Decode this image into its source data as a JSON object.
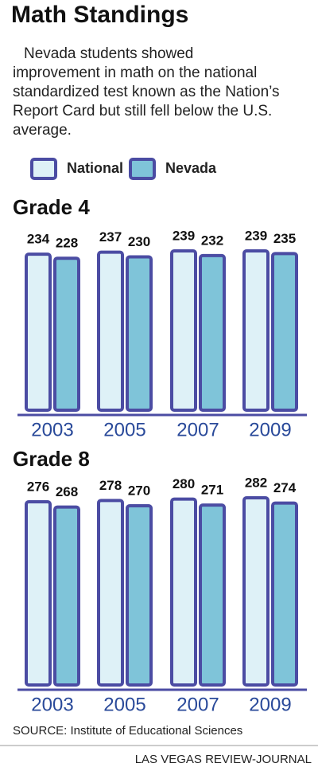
{
  "title": "Math Standings",
  "subtitle": "Nevada students showed improvement in math on the national standardized test known as the Nation’s Report Card but still fell below the U.S. average.",
  "chart_data": [
    {
      "type": "bar",
      "title": "Grade 4",
      "categories": [
        "2003",
        "2005",
        "2007",
        "2009"
      ],
      "edgecolor": "#4b4ca3",
      "series": [
        {
          "name": "National",
          "color": "#def1f7",
          "values": [
            234,
            237,
            239,
            239
          ]
        },
        {
          "name": "Nevada",
          "color": "#7fc4d9",
          "values": [
            228,
            230,
            232,
            235
          ]
        }
      ]
    },
    {
      "type": "bar",
      "title": "Grade 8",
      "categories": [
        "2003",
        "2005",
        "2007",
        "2009"
      ],
      "edgecolor": "#4b4ca3",
      "series": [
        {
          "name": "National",
          "color": "#def1f7",
          "values": [
            276,
            278,
            280,
            282
          ]
        },
        {
          "name": "Nevada",
          "color": "#7fc4d9",
          "values": [
            268,
            270,
            271,
            274
          ]
        }
      ]
    }
  ],
  "source": "SOURCE: Institute of Educational Sciences",
  "credit": "LAS VEGAS REVIEW-JOURNAL"
}
